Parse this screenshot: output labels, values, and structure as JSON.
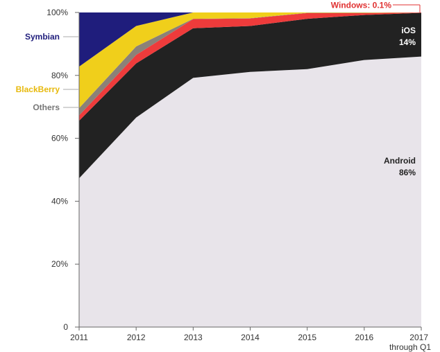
{
  "chart_data": {
    "type": "area",
    "stacked": true,
    "percent": true,
    "x": [
      "2011",
      "2012",
      "2013",
      "2014",
      "2015",
      "2016",
      "2017"
    ],
    "x_tick_note": "through Q1",
    "ylim": [
      0,
      100
    ],
    "y_ticks": [
      "0",
      "20%",
      "40%",
      "60%",
      "80%",
      "100%"
    ],
    "grid": false,
    "series": [
      {
        "name": "Android",
        "color": "#e8e4ea",
        "values": [
          47.3,
          66.6,
          79.2,
          81.1,
          82.0,
          84.9,
          86.0
        ]
      },
      {
        "name": "iOS",
        "color": "#222222",
        "values": [
          18.3,
          17.2,
          15.8,
          14.6,
          16.0,
          14.3,
          13.9
        ]
      },
      {
        "name": "Windows",
        "color": "#ee3b3b",
        "values": [
          1.7,
          2.7,
          2.9,
          2.4,
          1.8,
          0.6,
          0.1
        ]
      },
      {
        "name": "Others",
        "color": "#8b8178",
        "values": [
          2.3,
          2.7,
          0.1,
          0.1,
          0.1,
          0.1,
          0.0
        ]
      },
      {
        "name": "BlackBerry",
        "color": "#f0cf1b",
        "values": [
          13.2,
          6.5,
          2.0,
          1.8,
          0.1,
          0.1,
          0.0
        ]
      },
      {
        "name": "Symbian",
        "color": "#1f1d7c",
        "values": [
          17.2,
          4.3,
          0.0,
          0.0,
          0.0,
          0.0,
          0.0
        ]
      }
    ],
    "annotations": [
      {
        "series": "Windows",
        "text": "Windows: 0.1%",
        "color": "#e03131"
      },
      {
        "series": "iOS",
        "text": "iOS",
        "value_text": "14%",
        "color": "#ffffff"
      },
      {
        "series": "Android",
        "text": "Android",
        "value_text": "86%",
        "color": "#222222"
      },
      {
        "series": "Symbian",
        "text": "Symbian",
        "color": "#1f1d7c"
      },
      {
        "series": "BlackBerry",
        "text": "BlackBerry",
        "color": "#e7b90c"
      },
      {
        "series": "Others",
        "text": "Others",
        "color": "#777777"
      }
    ]
  }
}
